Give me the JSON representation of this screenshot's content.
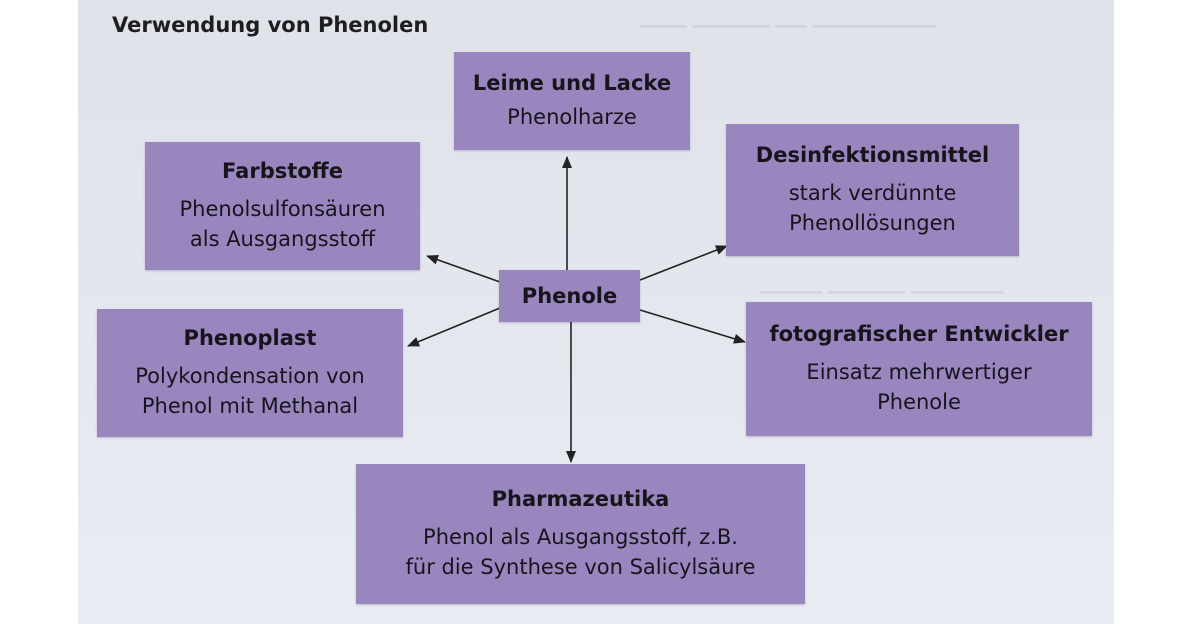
{
  "title": "Verwendung von Phenolen",
  "center": {
    "label": "Phenole"
  },
  "boxes": [
    {
      "id": "leime",
      "heading": "Leime und Lacke",
      "lines": [
        "Phenolharze"
      ]
    },
    {
      "id": "farbstoffe",
      "heading": "Farbstoffe",
      "lines": [
        "Phenolsulfonsäuren",
        "als Ausgangsstoff"
      ]
    },
    {
      "id": "desinfektion",
      "heading": "Desinfektionsmittel",
      "lines": [
        "stark verdünnte",
        "Phenollösungen"
      ]
    },
    {
      "id": "phenoplast",
      "heading": "Phenoplast",
      "lines": [
        "Polykondensation von",
        "Phenol mit Methanal"
      ]
    },
    {
      "id": "fotografisch",
      "heading": "fotografischer Entwickler",
      "lines": [
        "Einsatz mehrwertiger",
        "Phenole"
      ]
    },
    {
      "id": "pharmazeutika",
      "heading": "Pharmazeutika",
      "lines": [
        "Phenol als Ausgangsstoff, z.B.",
        "für die Synthese von Salicylsäure"
      ]
    }
  ],
  "colors": {
    "box_fill": "#9a86bf",
    "arrow": "#222222",
    "paper": "#e4e8ee"
  }
}
